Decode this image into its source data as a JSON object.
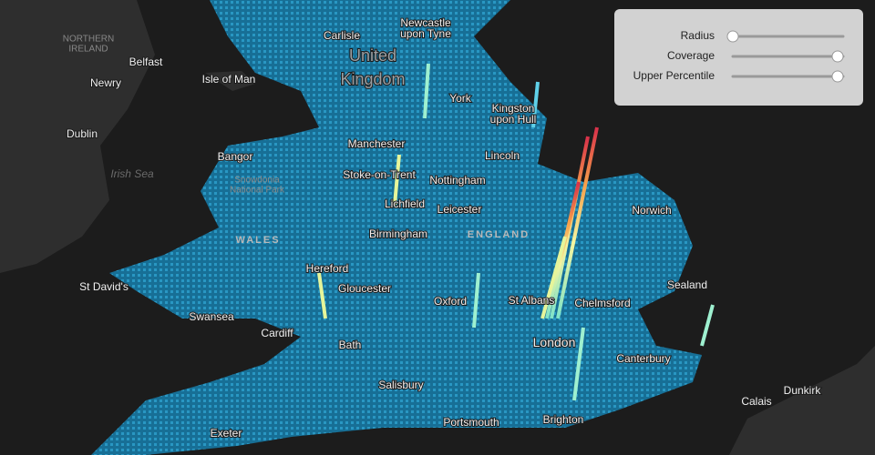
{
  "map": {
    "labels": [
      {
        "lines": [
          "Newcastle",
          "upon Tyne"
        ]
      },
      {
        "lines": [
          "Carlisle"
        ]
      },
      {
        "lines": [
          "NORTHERN",
          "IRELAND"
        ]
      },
      {
        "lines": [
          "Belfast"
        ]
      },
      {
        "lines": [
          "Isle of Man"
        ]
      },
      {
        "lines": [
          "United",
          "Kingdom"
        ]
      },
      {
        "lines": [
          "Newry"
        ]
      },
      {
        "lines": [
          "York"
        ]
      },
      {
        "lines": [
          "Kingston",
          "upon Hull"
        ]
      },
      {
        "lines": [
          "Dublin"
        ]
      },
      {
        "lines": [
          "Manchester"
        ]
      },
      {
        "lines": [
          "Irish Sea"
        ]
      },
      {
        "lines": [
          "Bangor"
        ]
      },
      {
        "lines": [
          "Snowdonia",
          "National Park"
        ]
      },
      {
        "lines": [
          "Lincoln"
        ]
      },
      {
        "lines": [
          "Stoke-on-Trent"
        ]
      },
      {
        "lines": [
          "Nottingham"
        ]
      },
      {
        "lines": [
          "Norwich"
        ]
      },
      {
        "lines": [
          "Lichfield"
        ]
      },
      {
        "lines": [
          "Leicester"
        ]
      },
      {
        "lines": [
          "WALES"
        ]
      },
      {
        "lines": [
          "Birmingham"
        ]
      },
      {
        "lines": [
          "ENGLAND"
        ]
      },
      {
        "lines": [
          "Hereford"
        ]
      },
      {
        "lines": [
          "St David's"
        ]
      },
      {
        "lines": [
          "Gloucester"
        ]
      },
      {
        "lines": [
          "Oxford"
        ]
      },
      {
        "lines": [
          "St Albans"
        ]
      },
      {
        "lines": [
          "Chelmsford"
        ]
      },
      {
        "lines": [
          "Sealand"
        ]
      },
      {
        "lines": [
          "Swansea"
        ]
      },
      {
        "lines": [
          "Cardiff"
        ]
      },
      {
        "lines": [
          "London"
        ]
      },
      {
        "lines": [
          "Bath"
        ]
      },
      {
        "lines": [
          "Canterbury"
        ]
      },
      {
        "lines": [
          "Salisbury"
        ]
      },
      {
        "lines": [
          "Calais"
        ]
      },
      {
        "lines": [
          "Dunkirk"
        ]
      },
      {
        "lines": [
          "Exeter"
        ]
      },
      {
        "lines": [
          "Portsmouth"
        ]
      },
      {
        "lines": [
          "Brighton"
        ]
      }
    ]
  },
  "controls": [
    {
      "label": "Radius",
      "value": 0
    },
    {
      "label": "Coverage",
      "value": 1
    },
    {
      "label": "Upper Percentile",
      "value": 1
    }
  ]
}
